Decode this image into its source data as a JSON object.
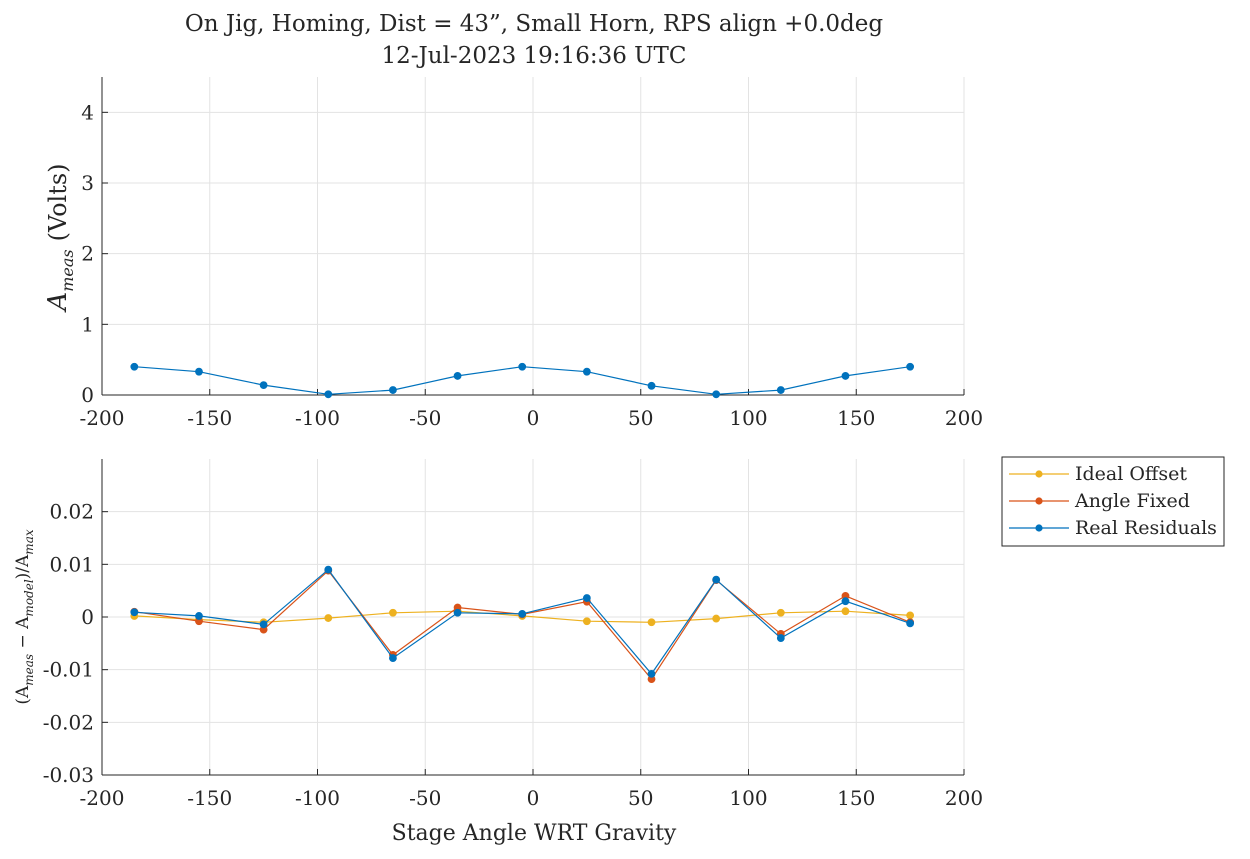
{
  "title": {
    "line1": "On Jig, Homing, Dist = 43”, Small Horn, RPS align +0.0deg",
    "line2": "12-Jul-2023 19:16:36 UTC"
  },
  "colors": {
    "ideal": "#EDB120",
    "fixed": "#D95319",
    "real": "#0072BD",
    "grid": "#E3E3E3",
    "axis": "#262626"
  },
  "chart_data": [
    {
      "type": "line",
      "panel": "top",
      "xlabel": "",
      "ylabel_main": "A",
      "ylabel_sub": "meas",
      "ylabel_units": "(Volts)",
      "xlim": [
        -200,
        200
      ],
      "ylim": [
        0,
        4.5
      ],
      "xticks": [
        -200,
        -150,
        -100,
        -50,
        0,
        50,
        100,
        150,
        200
      ],
      "yticks": [
        0,
        1,
        2,
        3,
        4
      ],
      "xtick_labels": [
        "-200",
        "-150",
        "-100",
        "-50",
        "0",
        "50",
        "100",
        "150",
        "200"
      ],
      "ytick_labels": [
        "0",
        "1",
        "2",
        "3",
        "4"
      ],
      "grid": true,
      "series": [
        {
          "x": [
            -185,
            -155,
            -125,
            -95,
            -65,
            -35,
            -5,
            25,
            55,
            85,
            115,
            145,
            175
          ],
          "values": [
            0.4,
            0.33,
            0.14,
            0.01,
            0.07,
            0.27,
            0.4,
            0.33,
            0.13,
            0.01,
            0.07,
            0.27,
            0.4
          ],
          "color": "#0072BD"
        }
      ]
    },
    {
      "type": "line",
      "panel": "bottom",
      "xlabel": "Stage Angle WRT Gravity",
      "ylabel_parts": [
        "(A",
        "meas",
        " − A",
        "model",
        ")/A",
        "max"
      ],
      "xlim": [
        -200,
        200
      ],
      "ylim": [
        -0.03,
        0.03
      ],
      "xticks": [
        -200,
        -150,
        -100,
        -50,
        0,
        50,
        100,
        150,
        200
      ],
      "yticks": [
        -0.03,
        -0.02,
        -0.01,
        0,
        0.01,
        0.02
      ],
      "xtick_labels": [
        "-200",
        "-150",
        "-100",
        "-50",
        "0",
        "50",
        "100",
        "150",
        "200"
      ],
      "ytick_labels": [
        "-0.03",
        "-0.02",
        "-0.01",
        "0",
        "0.01",
        "0.02"
      ],
      "grid": true,
      "legend_position": "outside-top-right",
      "series": [
        {
          "name": "Ideal Offset",
          "x": [
            -185,
            -155,
            -125,
            -95,
            -65,
            -35,
            -5,
            25,
            55,
            85,
            115,
            145,
            175
          ],
          "values": [
            0.0002,
            -0.0005,
            -0.001,
            -0.0002,
            0.0008,
            0.0011,
            0.0002,
            -0.0008,
            -0.001,
            -0.0003,
            0.0008,
            0.0011,
            0.0003
          ],
          "color": "#EDB120"
        },
        {
          "name": "Angle Fixed",
          "x": [
            -185,
            -155,
            -125,
            -95,
            -65,
            -35,
            -5,
            25,
            55,
            85,
            115,
            145,
            175
          ],
          "values": [
            0.001,
            -0.0008,
            -0.0024,
            0.0088,
            -0.0072,
            0.0018,
            0.0005,
            0.0029,
            -0.0118,
            0.007,
            -0.0032,
            0.004,
            -0.001
          ],
          "color": "#D95319"
        },
        {
          "name": "Real Residuals",
          "x": [
            -185,
            -155,
            -125,
            -95,
            -65,
            -35,
            -5,
            25,
            55,
            85,
            115,
            145,
            175
          ],
          "values": [
            0.0009,
            0.0002,
            -0.0014,
            0.009,
            -0.0078,
            0.0008,
            0.0006,
            0.0036,
            -0.0108,
            0.0071,
            -0.004,
            0.003,
            -0.0012
          ],
          "color": "#0072BD"
        }
      ]
    }
  ]
}
